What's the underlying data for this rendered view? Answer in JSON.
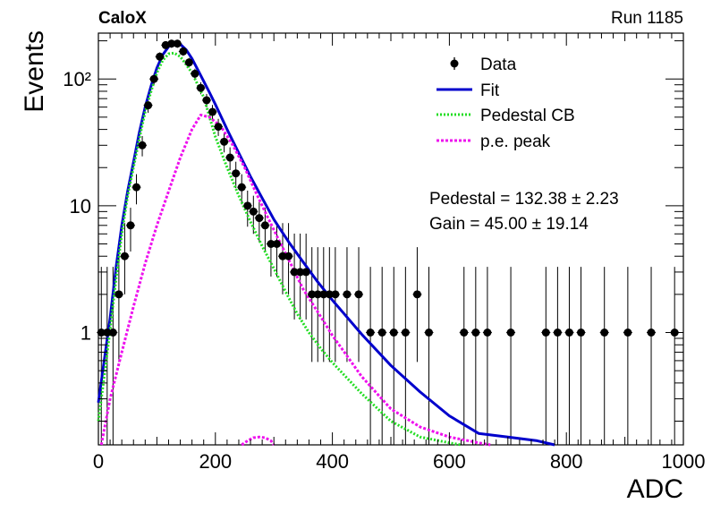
{
  "header": {
    "left": "CaloX",
    "right": "Run 1185"
  },
  "annotations": {
    "pedestal": "Pedestal = 132.38 ± 2.23",
    "gain": "Gain = 45.00 ± 19.14"
  },
  "legend": {
    "data": "Data",
    "fit": "Fit",
    "pedestal_cb": "Pedestal CB",
    "pe_peak": "p.e. peak"
  },
  "colors": {
    "data": "#000000",
    "fit": "#0000cc",
    "pedestal_cb": "#22dd22",
    "pe_peak": "#ee11ee"
  },
  "chart_data": {
    "type": "scatter",
    "xlabel": "ADC",
    "ylabel": "Events",
    "xlim": [
      0,
      1000
    ],
    "ylim": [
      0.13,
      230
    ],
    "yscale": "log",
    "x_ticks": [
      0,
      200,
      400,
      600,
      800,
      1000
    ],
    "x_tick_labels": [
      "0",
      "200",
      "400",
      "600",
      "800",
      "1000"
    ],
    "y_ticks": [
      1,
      10,
      100
    ],
    "y_tick_labels": [
      "1",
      "10",
      "10²"
    ],
    "legend_position": "top-right",
    "series": [
      {
        "name": "Data",
        "style": "points-with-errors",
        "x": [
          5,
          15,
          25,
          35,
          45,
          55,
          65,
          75,
          85,
          95,
          105,
          115,
          125,
          135,
          145,
          155,
          165,
          175,
          185,
          195,
          205,
          215,
          225,
          235,
          245,
          255,
          265,
          275,
          285,
          295,
          305,
          315,
          325,
          335,
          345,
          355,
          365,
          375,
          385,
          395,
          405,
          425,
          445,
          465,
          485,
          505,
          525,
          545,
          565,
          625,
          645,
          665,
          705,
          765,
          785,
          805,
          825,
          865,
          905,
          945,
          985
        ],
        "y": [
          1,
          1,
          1,
          2,
          4,
          7,
          14,
          30,
          62,
          100,
          150,
          185,
          190,
          190,
          165,
          135,
          110,
          85,
          68,
          55,
          42,
          32,
          24,
          18,
          14,
          10,
          9,
          8,
          7,
          5,
          5,
          4,
          4,
          3,
          3,
          3,
          2,
          2,
          2,
          2,
          2,
          2,
          2,
          1,
          1,
          1,
          1,
          2,
          1,
          1,
          1,
          1,
          1,
          1,
          1,
          1,
          1,
          1,
          1,
          1,
          1
        ]
      },
      {
        "name": "Fit",
        "style": "line",
        "x": [
          0,
          10,
          20,
          30,
          40,
          50,
          60,
          70,
          80,
          90,
          100,
          110,
          120,
          130,
          140,
          150,
          160,
          170,
          180,
          190,
          200,
          220,
          240,
          260,
          280,
          300,
          325,
          350,
          375,
          400,
          450,
          500,
          550,
          600,
          650,
          700,
          750,
          780
        ],
        "y": [
          0.28,
          0.6,
          1.3,
          3.2,
          7,
          13,
          22,
          38,
          60,
          88,
          122,
          155,
          180,
          192,
          188,
          170,
          145,
          118,
          96,
          78,
          63,
          40,
          26,
          17,
          11.5,
          7.8,
          5.2,
          3.6,
          2.5,
          1.8,
          0.97,
          0.55,
          0.34,
          0.22,
          0.16,
          0.15,
          0.14,
          0.13
        ]
      },
      {
        "name": "Pedestal CB",
        "style": "dotted",
        "x": [
          0,
          10,
          20,
          30,
          40,
          50,
          60,
          70,
          80,
          90,
          100,
          110,
          120,
          130,
          140,
          150,
          160,
          180,
          200,
          220,
          240,
          260,
          280,
          300,
          320,
          340,
          360,
          380,
          400,
          450,
          500,
          550,
          600,
          620
        ],
        "y": [
          0.2,
          0.45,
          1.05,
          2.6,
          6,
          12,
          20,
          34,
          55,
          80,
          112,
          140,
          158,
          160,
          150,
          130,
          112,
          72,
          35,
          20,
          12,
          7.5,
          4.8,
          3.2,
          2.1,
          1.4,
          1.0,
          0.75,
          0.58,
          0.33,
          0.2,
          0.15,
          0.135,
          0.13
        ]
      },
      {
        "name": "p.e. peak",
        "style": "dotted",
        "x": [
          5,
          20,
          40,
          60,
          80,
          100,
          120,
          140,
          160,
          175,
          190,
          210,
          230,
          250,
          270,
          290,
          310,
          330,
          350,
          375,
          400,
          450,
          500,
          550,
          600,
          650,
          670
        ],
        "y": [
          0.13,
          0.3,
          0.7,
          1.6,
          3.5,
          7,
          13,
          24,
          40,
          52,
          50,
          42,
          30,
          20,
          12.5,
          8,
          5.2,
          3.4,
          2.2,
          1.45,
          0.95,
          0.45,
          0.25,
          0.18,
          0.15,
          0.135,
          0.13
        ]
      },
      {
        "name": "",
        "style": "dotted",
        "x": [
          245,
          255,
          265,
          275,
          285,
          295,
          300
        ],
        "y": [
          0.13,
          0.14,
          0.148,
          0.15,
          0.148,
          0.14,
          0.13
        ]
      }
    ]
  }
}
